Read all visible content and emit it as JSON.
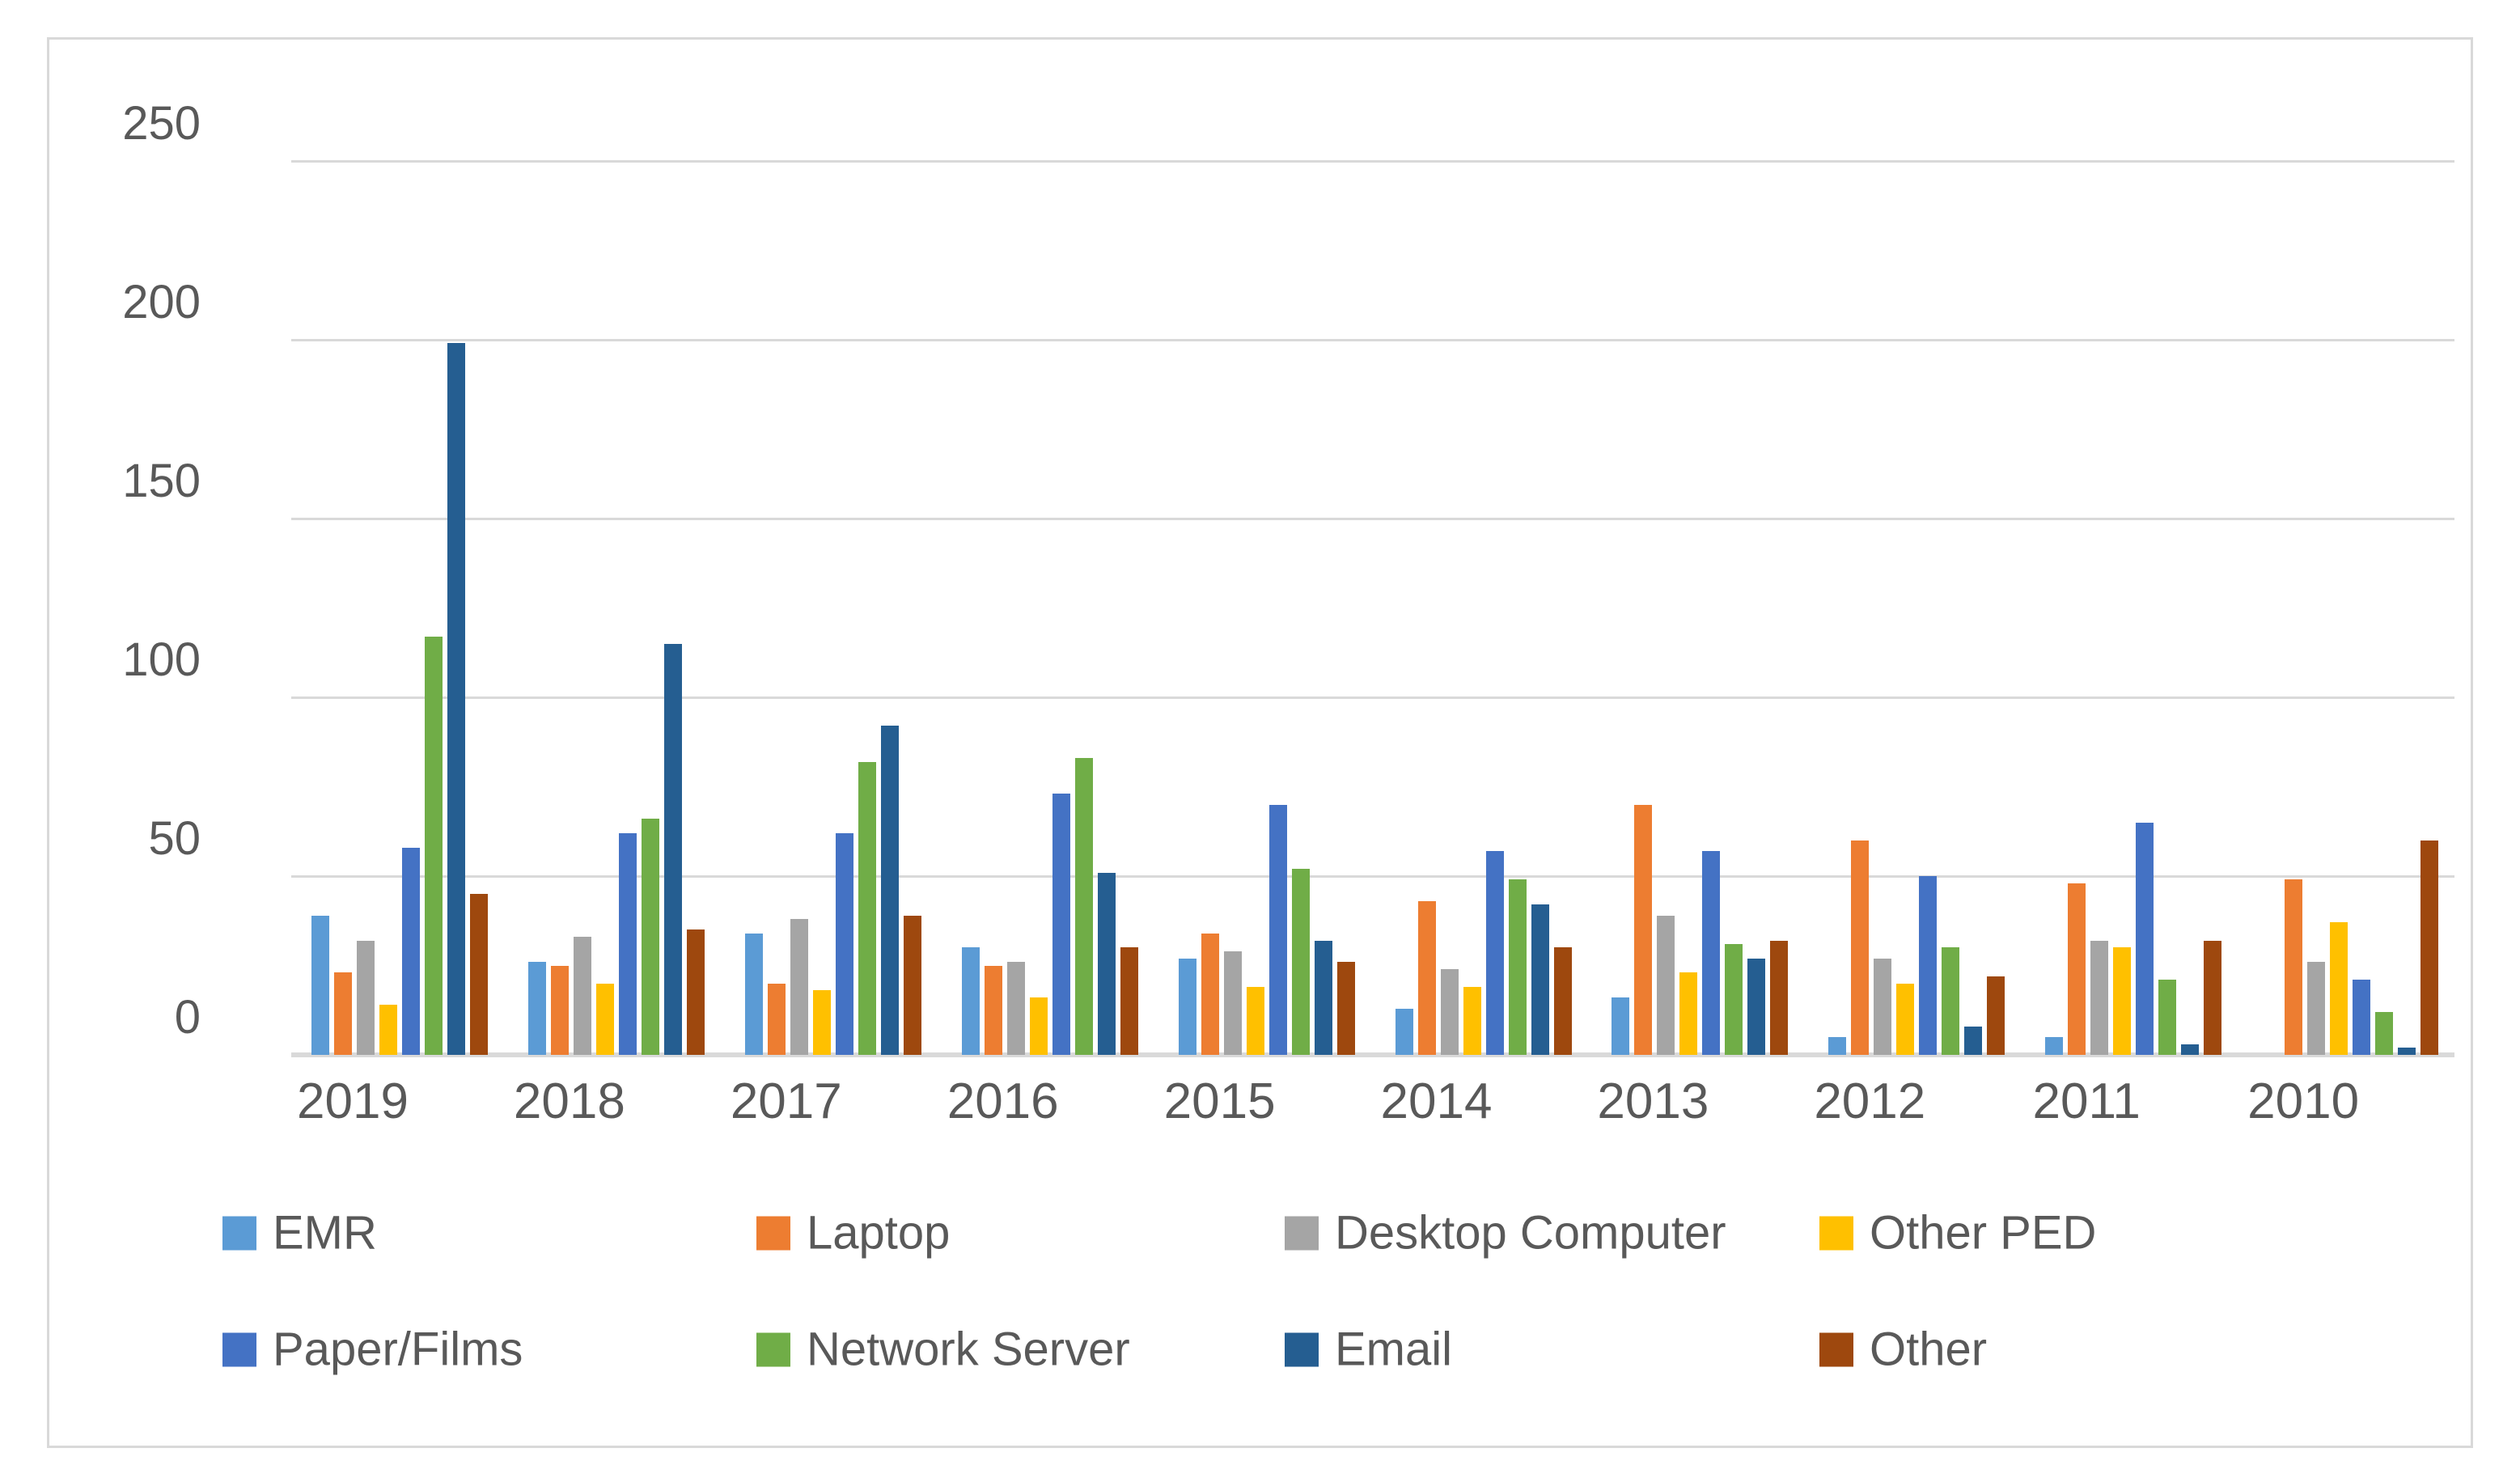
{
  "chart_data": {
    "type": "bar",
    "title": "",
    "xlabel": "",
    "ylabel": "",
    "categories": [
      "2019",
      "2018",
      "2017",
      "2016",
      "2015",
      "2014",
      "2013",
      "2012",
      "2011",
      "2010"
    ],
    "series": [
      {
        "name": "EMR",
        "color": "#5B9BD5",
        "values": [
          39,
          26,
          34,
          30,
          27,
          13,
          16,
          5,
          5,
          0
        ]
      },
      {
        "name": "Laptop",
        "color": "#ED7D31",
        "values": [
          23,
          25,
          20,
          25,
          34,
          43,
          70,
          60,
          48,
          49
        ]
      },
      {
        "name": "Desktop Computer",
        "color": "#A5A5A5",
        "values": [
          32,
          33,
          38,
          26,
          29,
          24,
          39,
          27,
          32,
          26
        ]
      },
      {
        "name": "Other PED",
        "color": "#FFC000",
        "values": [
          14,
          20,
          18,
          16,
          19,
          19,
          23,
          20,
          30,
          37
        ]
      },
      {
        "name": "Paper/Films",
        "color": "#4472C4",
        "values": [
          58,
          62,
          62,
          73,
          70,
          57,
          57,
          50,
          65,
          21
        ]
      },
      {
        "name": "Network Server",
        "color": "#70AD47",
        "values": [
          117,
          66,
          82,
          83,
          52,
          49,
          31,
          30,
          21,
          12
        ]
      },
      {
        "name": "Email",
        "color": "#255E91",
        "values": [
          199,
          115,
          92,
          51,
          32,
          42,
          27,
          8,
          3,
          2
        ]
      },
      {
        "name": "Other",
        "color": "#9E480E",
        "values": [
          45,
          35,
          39,
          30,
          26,
          30,
          32,
          22,
          32,
          60
        ]
      }
    ],
    "ylim": [
      0,
      250
    ],
    "yticks": [
      0,
      50,
      100,
      150,
      200,
      250
    ],
    "grid": "horizontal",
    "gridline_color": "#D9D9D9",
    "tick_label_color": "#595959",
    "legend_position": "bottom",
    "legend_rows": [
      [
        "EMR",
        "Laptop",
        "Desktop Computer",
        "Other PED"
      ],
      [
        "Paper/Films",
        "Network Server",
        "Email",
        "Other"
      ]
    ]
  }
}
